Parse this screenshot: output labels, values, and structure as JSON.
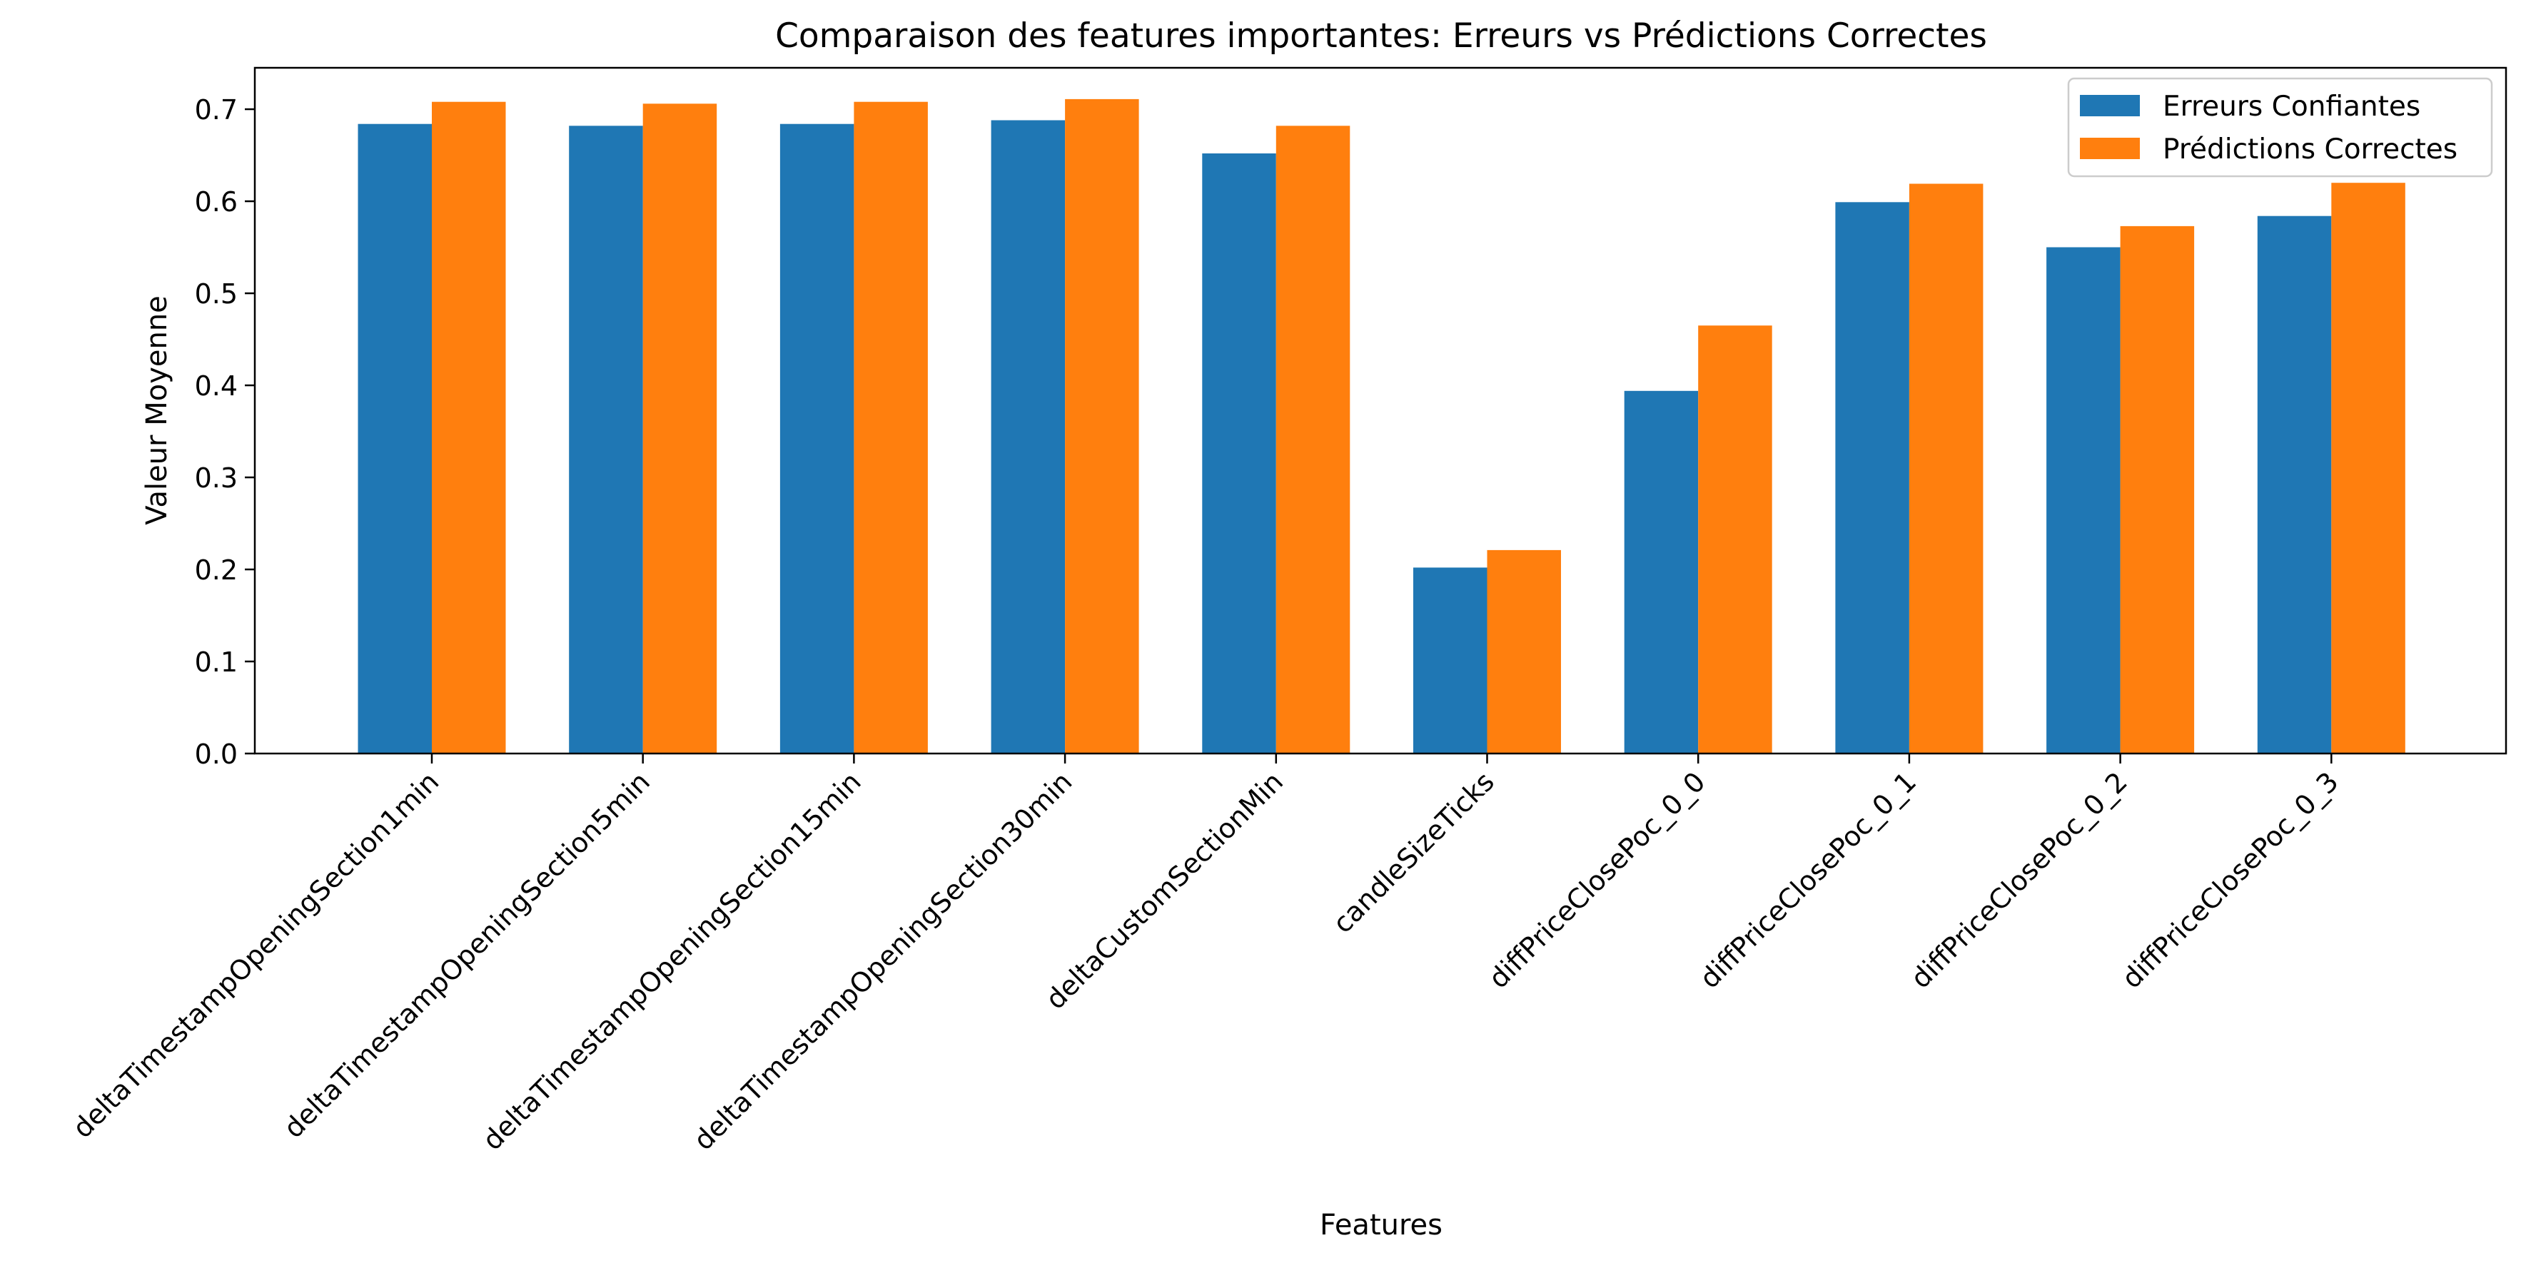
{
  "chart_data": {
    "type": "bar",
    "title": "Comparaison des features importantes: Erreurs vs Prédictions Correctes",
    "xlabel": "Features",
    "ylabel": "Valeur Moyenne",
    "ylim": [
      0,
      0.745
    ],
    "yticks": [
      "0.0",
      "0.1",
      "0.2",
      "0.3",
      "0.4",
      "0.5",
      "0.6",
      "0.7"
    ],
    "grid": false,
    "legend_position": "top-right",
    "categories": [
      "deltaTimestampOpeningSection1min",
      "deltaTimestampOpeningSection5min",
      "deltaTimestampOpeningSection15min",
      "deltaTimestampOpeningSection30min",
      "deltaCustomSectionMin",
      "candleSizeTicks",
      "diffPriceClosePoc_0_0",
      "diffPriceClosePoc_0_1",
      "diffPriceClosePoc_0_2",
      "diffPriceClosePoc_0_3"
    ],
    "series": [
      {
        "name": "Erreurs Confiantes",
        "color": "#1f77b4",
        "values": [
          0.684,
          0.682,
          0.684,
          0.688,
          0.652,
          0.202,
          0.394,
          0.599,
          0.55,
          0.584
        ]
      },
      {
        "name": "Prédictions Correctes",
        "color": "#ff7f0e",
        "values": [
          0.708,
          0.706,
          0.708,
          0.711,
          0.682,
          0.221,
          0.465,
          0.619,
          0.573,
          0.62
        ]
      }
    ]
  }
}
